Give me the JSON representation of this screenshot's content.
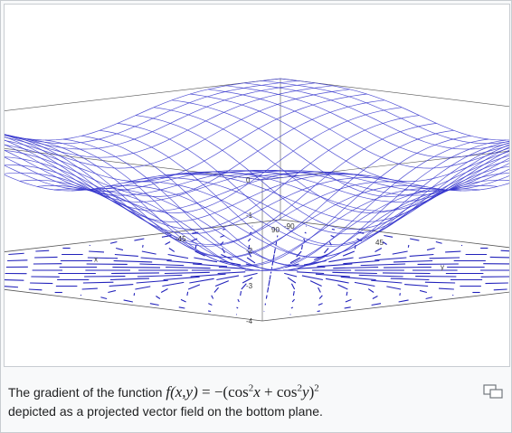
{
  "figure": {
    "axes": {
      "z_ticks": [
        "0",
        "-1",
        "-2",
        "-3",
        "-4"
      ],
      "y_ticks": [
        "-90",
        "-45",
        "45",
        "90"
      ],
      "x_ticks": [
        "-90",
        "-45",
        "45",
        "90"
      ],
      "y_label": "y",
      "x_label": "x"
    },
    "surface_color": "#3333cc",
    "arrow_color": "#2222bb"
  },
  "caption": {
    "prefix": "The gradient of the function ",
    "f": "f",
    "args": "(x,y)",
    "eq": " = −(cos",
    "sup1": "2",
    "var1": "x",
    "plus": " + cos",
    "sup2": "2",
    "var2": "y",
    "close": ")",
    "sup3": "2",
    "line2": "depicted as a projected vector field on the bottom plane."
  }
}
